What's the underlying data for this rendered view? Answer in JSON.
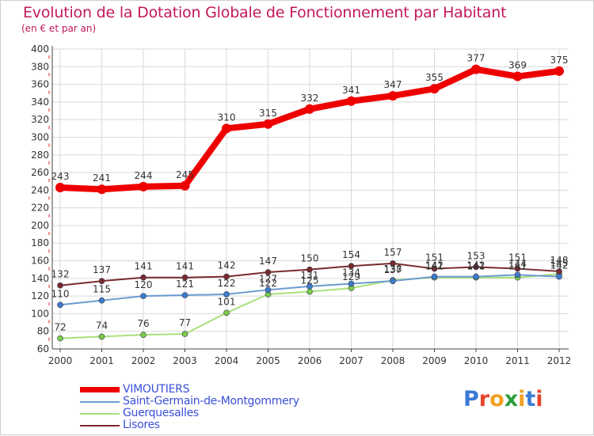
{
  "title": "Evolution de la Dotation Globale de Fonctionnement par Habitant",
  "subtitle": "(en € et par an)",
  "colors": {
    "title": "#c2185b",
    "grid": "#d9d9d9",
    "axis": "#444444",
    "legend_text": "#3a4fd8"
  },
  "chart_data": {
    "type": "line",
    "title": "Evolution de la Dotation Globale de Fonctionnement par Habitant",
    "subtitle": "(en € et par an)",
    "xlabel": "",
    "ylabel": "",
    "ylim": [
      60,
      400
    ],
    "y_ticks": [
      60,
      80,
      100,
      120,
      140,
      160,
      180,
      200,
      220,
      240,
      260,
      280,
      300,
      320,
      340,
      360,
      380,
      400
    ],
    "x": [
      "2000",
      "2001",
      "2002",
      "2003",
      "2004",
      "2005",
      "2006",
      "2007",
      "2008",
      "2009",
      "2010",
      "2011",
      "2012"
    ],
    "grid": true,
    "legend_position": "bottom-left",
    "series": [
      {
        "name": "VIMOUTIERS",
        "color": "#ee0000",
        "marker_color": "#ee0000",
        "values": [
          243,
          241,
          244,
          245,
          310,
          315,
          332,
          341,
          347,
          355,
          377,
          369,
          375
        ],
        "labels": [
          "243",
          "241",
          "244",
          "245",
          "310",
          "315",
          "332",
          "341",
          "347",
          "355",
          "377",
          "369",
          "375"
        ]
      },
      {
        "name": "Saint-Germain-de-Montgommery",
        "color": "#6b9bd1",
        "marker_color": "#3d7cc9",
        "values": [
          110,
          115,
          120,
          121,
          122,
          127,
          131,
          134,
          137,
          142,
          142,
          144,
          142
        ],
        "labels": [
          "110",
          "115",
          "120",
          "121",
          "122",
          "127",
          "131",
          "134",
          "137",
          "142",
          "142",
          "144",
          "142"
        ]
      },
      {
        "name": "Guerquesalles",
        "color": "#a8e07a",
        "marker_color": "#7ccc45",
        "values": [
          72,
          74,
          76,
          77,
          101,
          122,
          125,
          129,
          138,
          141,
          141,
          141,
          145
        ],
        "labels": [
          "72",
          "74",
          "76",
          "77",
          "101",
          "122",
          "125",
          "129",
          "138",
          "141",
          "141",
          "141",
          "145"
        ]
      },
      {
        "name": "Lisores",
        "color": "#7a2b2b",
        "marker_color": "#7a2b2b",
        "values": [
          132,
          137,
          141,
          141,
          142,
          147,
          150,
          154,
          157,
          151,
          153,
          151,
          148
        ],
        "labels": [
          "132",
          "137",
          "141",
          "141",
          "142",
          "147",
          "150",
          "154",
          "157",
          "151",
          "153",
          "151",
          "148"
        ]
      }
    ]
  },
  "legend": [
    {
      "label": "VIMOUTIERS",
      "color": "#ee0000"
    },
    {
      "label": "Saint-Germain-de-Montgommery",
      "color": "#6b9bd1"
    },
    {
      "label": "Guerquesalles",
      "color": "#a8e07a"
    },
    {
      "label": "Lisores",
      "color": "#7a2b2b"
    }
  ],
  "logo": {
    "text": "Proxiti",
    "letter_colors": [
      "#3a7bd5",
      "#e6442a",
      "#f0a020",
      "#2e9e3e",
      "#f0a020",
      "#3a7bd5",
      "#e6442a"
    ]
  }
}
